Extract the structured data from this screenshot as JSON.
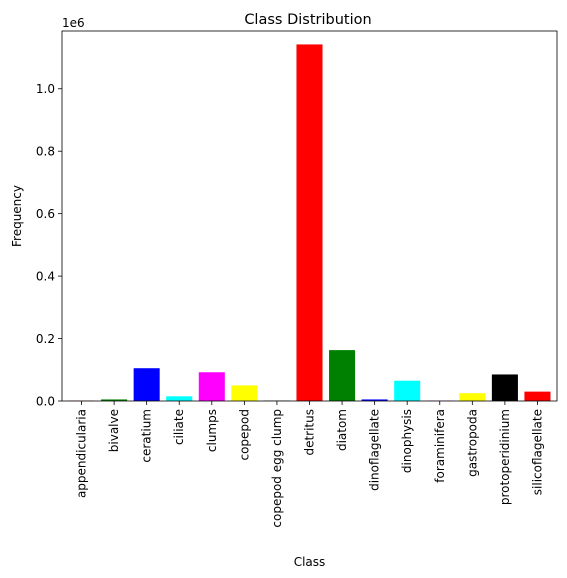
{
  "chart_data": {
    "type": "bar",
    "title": "Class Distribution",
    "xlabel": "Class",
    "ylabel": "Frequency",
    "y_offset_label": "1e6",
    "ylim": [
      0,
      1185000
    ],
    "y_ticks": [
      0,
      200000,
      400000,
      600000,
      800000,
      1000000
    ],
    "y_tick_labels": [
      "0.0",
      "0.2",
      "0.4",
      "0.6",
      "0.8",
      "1.0"
    ],
    "grid": false,
    "categories": [
      "appendicularia",
      "bivalve",
      "ceratium",
      "ciliate",
      "clumps",
      "copepod",
      "copepod egg clump",
      "detritus",
      "diatom",
      "dinoflagellate",
      "dinophysis",
      "foraminifera",
      "gastropoda",
      "protoperidinium",
      "silicoflagellate"
    ],
    "values": [
      1000,
      5000,
      105000,
      15000,
      92000,
      50000,
      1000,
      1142000,
      163000,
      5000,
      65000,
      1000,
      25000,
      85000,
      30000
    ],
    "colors": [
      "#ff0000",
      "#008000",
      "#0000ff",
      "#00ffff",
      "#ff00ff",
      "#ffff00",
      "#000000",
      "#ff0000",
      "#008000",
      "#0000ff",
      "#00ffff",
      "#ff00ff",
      "#ffff00",
      "#000000",
      "#ff0000"
    ]
  }
}
